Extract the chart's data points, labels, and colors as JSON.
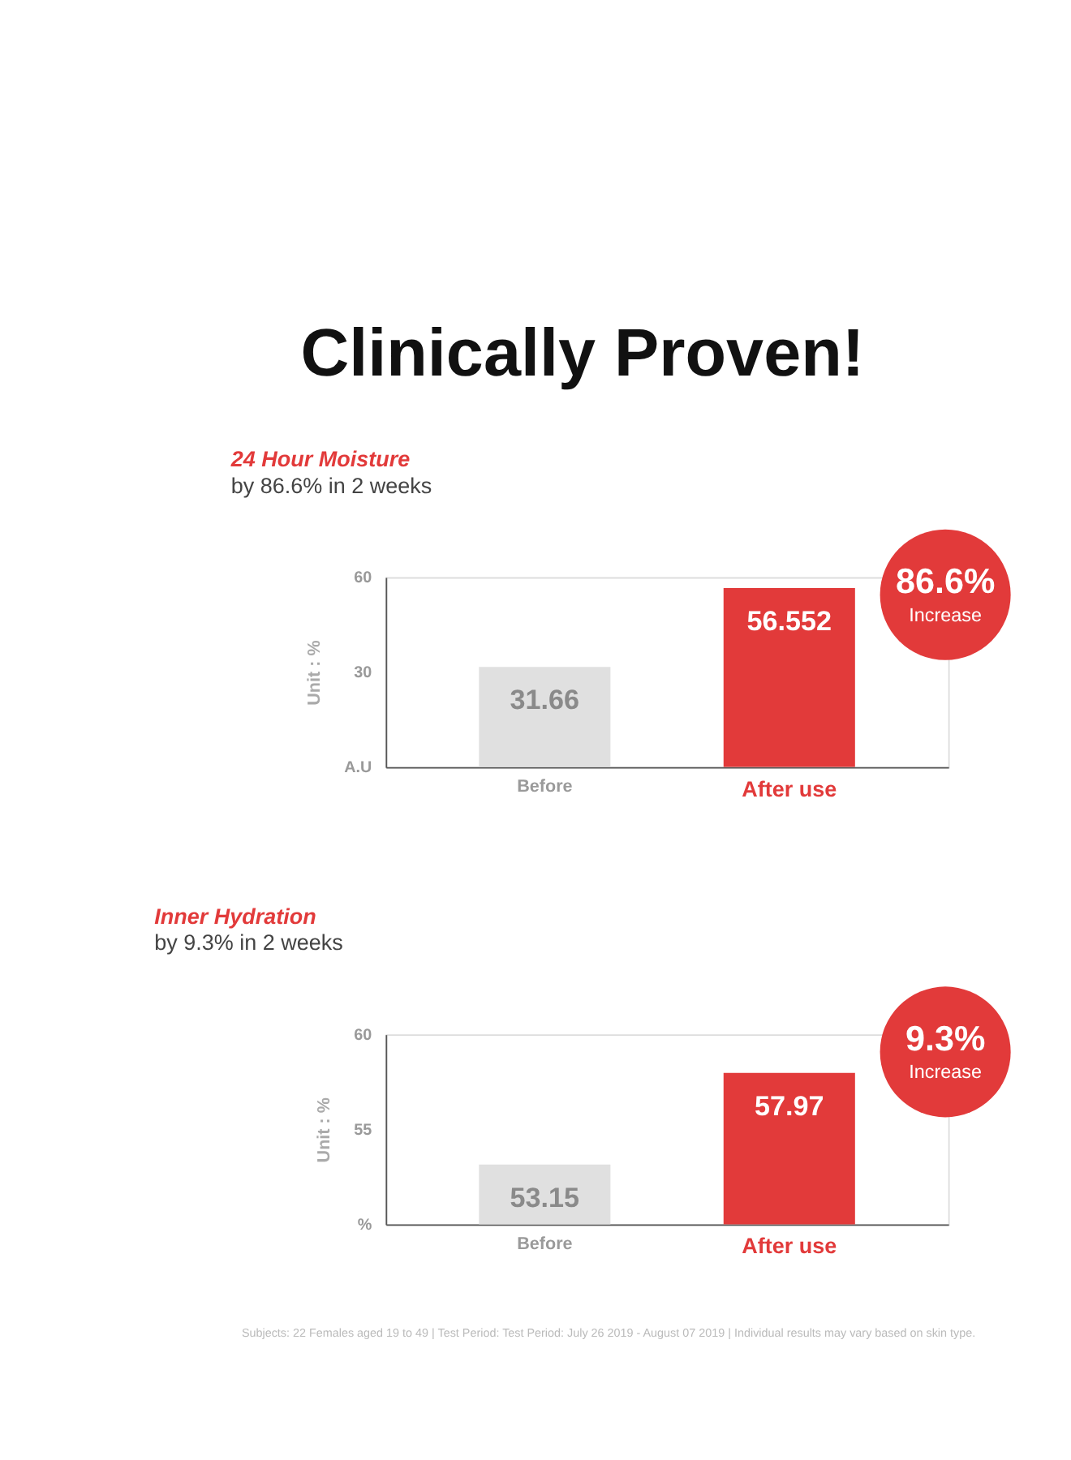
{
  "chart_data": [
    {
      "type": "bar",
      "title": "24 Hour Moisture",
      "subtitle": "by 86.6% in 2 weeks",
      "ylabel": "Unit : %",
      "categories": [
        "Before",
        "After use"
      ],
      "values": [
        31.66,
        56.552
      ],
      "colors": [
        "#e0e0e0",
        "#e23a3a"
      ],
      "ylim": [
        0,
        60
      ],
      "yticks": [
        {
          "value": 0,
          "label": "A.U"
        },
        30,
        60
      ],
      "data_labels": true,
      "grid": false,
      "annotations": [
        "Clinically Proven!",
        "86.6%",
        "Increase"
      ]
    },
    {
      "type": "bar",
      "title": "Inner Hydration",
      "subtitle": "by 9.3% in 2 weeks",
      "ylabel": "Unit : %",
      "categories": [
        "Before",
        "After use"
      ],
      "values": [
        53.15,
        57.97
      ],
      "colors": [
        "#e0e0e0",
        "#e23a3a"
      ],
      "ylim": [
        50,
        60
      ],
      "yticks": [
        {
          "value": 50,
          "label": "%"
        },
        55,
        60
      ],
      "data_labels": true,
      "grid": false,
      "annotations": [
        "9.3%",
        "Increase",
        "Subjects: 22 Females aged 19 to 49   |   Test Period: Test Period: July 26 2019 - August 07 2019   |   Individual results may vary based on skin type."
      ]
    }
  ]
}
